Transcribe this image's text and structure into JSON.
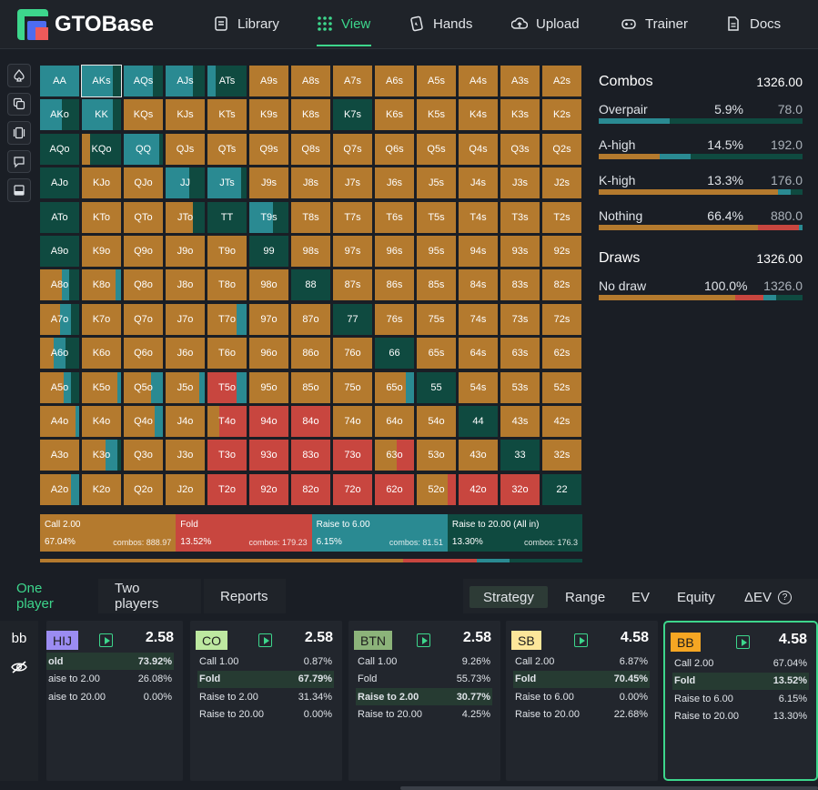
{
  "app": {
    "name": "GTOBase"
  },
  "nav": [
    {
      "label": "Library",
      "icon": "book-icon"
    },
    {
      "label": "View",
      "icon": "grid-icon",
      "active": true
    },
    {
      "label": "Hands",
      "icon": "cards-icon"
    },
    {
      "label": "Upload",
      "icon": "cloud-upload-icon"
    },
    {
      "label": "Trainer",
      "icon": "gamepad-icon"
    },
    {
      "label": "Docs",
      "icon": "document-icon"
    }
  ],
  "colors": {
    "call": "#b47a2e",
    "fold": "#c8463f",
    "raise_small": "#2a8a92",
    "raise_allin": "#0f4a40",
    "accent": "#3dd68c"
  },
  "ranks": [
    "A",
    "K",
    "Q",
    "J",
    "T",
    "9",
    "8",
    "7",
    "6",
    "5",
    "4",
    "3",
    "2"
  ],
  "matrix_overrides": {
    "AA": [
      0,
      0,
      1,
      0
    ],
    "AKs": [
      0,
      0,
      0.8,
      0.2
    ],
    "AQs": [
      0,
      0,
      0.75,
      0.25
    ],
    "AJs": [
      0,
      0,
      0.7,
      0.3
    ],
    "ATs": [
      0,
      0,
      0.2,
      0.8
    ],
    "AKo": [
      0,
      0,
      0.55,
      0.45
    ],
    "KK": [
      0,
      0,
      0.8,
      0.2
    ],
    "K7s": [
      0,
      0,
      0,
      1
    ],
    "AQo": [
      0,
      0,
      0,
      1
    ],
    "KQo": [
      0.2,
      0,
      0,
      0.8
    ],
    "QQ": [
      0,
      0,
      0.9,
      0.1
    ],
    "AJo": [
      0,
      0,
      0,
      1
    ],
    "JJ": [
      0,
      0,
      0.6,
      0.4
    ],
    "JTs": [
      0,
      0,
      0.85,
      0.15
    ],
    "ATo": [
      0,
      0,
      0,
      1
    ],
    "JTo": [
      0.7,
      0,
      0,
      0.3
    ],
    "TT": [
      0,
      0,
      0,
      1
    ],
    "T9s": [
      0,
      0,
      0.6,
      0.4
    ],
    "A9o": [
      0,
      0,
      0,
      1
    ],
    "99": [
      0,
      0,
      0,
      1
    ],
    "A8o": [
      0.55,
      0,
      0.2,
      0.25
    ],
    "K8o": [
      0.85,
      0,
      0.15,
      0
    ],
    "88": [
      0,
      0,
      0,
      1
    ],
    "A7o": [
      0.5,
      0,
      0.3,
      0.2
    ],
    "77": [
      0,
      0,
      0,
      1
    ],
    "T7o": [
      0.75,
      0,
      0.25,
      0
    ],
    "A6o": [
      0.35,
      0,
      0.3,
      0.35
    ],
    "66": [
      0,
      0,
      0,
      1
    ],
    "A5o": [
      0.6,
      0,
      0.2,
      0.2
    ],
    "K5o": [
      0.9,
      0,
      0.1,
      0
    ],
    "Q5o": [
      0.7,
      0,
      0.3,
      0
    ],
    "J5o": [
      0.85,
      0,
      0.15,
      0
    ],
    "T5o": [
      0,
      0.75,
      0.25,
      0
    ],
    "55": [
      0,
      0,
      0,
      1
    ],
    "65o": [
      0.8,
      0,
      0.2,
      0
    ],
    "A4o": [
      0.9,
      0,
      0.1,
      0
    ],
    "Q4o": [
      0.8,
      0,
      0.2,
      0
    ],
    "T4o": [
      0.3,
      0.7,
      0,
      0
    ],
    "94o": [
      0,
      1,
      0,
      0
    ],
    "84o": [
      0,
      1,
      0,
      0
    ],
    "44": [
      0,
      0,
      0,
      1
    ],
    "K3o": [
      0.6,
      0,
      0.3,
      0.1
    ],
    "T3o": [
      0,
      1,
      0,
      0
    ],
    "93o": [
      0,
      1,
      0,
      0
    ],
    "83o": [
      0,
      1,
      0,
      0
    ],
    "73o": [
      0,
      1,
      0,
      0
    ],
    "63o": [
      0.55,
      0.45,
      0,
      0
    ],
    "33": [
      0,
      0,
      0,
      1
    ],
    "A2o": [
      0.8,
      0,
      0.2,
      0
    ],
    "T2o": [
      0,
      1,
      0,
      0
    ],
    "92o": [
      0,
      1,
      0,
      0
    ],
    "82o": [
      0,
      1,
      0,
      0
    ],
    "72o": [
      0,
      1,
      0,
      0
    ],
    "62o": [
      0,
      1,
      0,
      0
    ],
    "52o": [
      0.8,
      0.2,
      0,
      0
    ],
    "42o": [
      0,
      1,
      0,
      0
    ],
    "32o": [
      0,
      1,
      0,
      0
    ],
    "22": [
      0,
      0,
      0,
      1
    ]
  },
  "selected_hand": "AKs",
  "legend": [
    {
      "action": "Call 2.00",
      "pct": "67.04%",
      "combos": "combos: 888.97",
      "share": 0.2505
    },
    {
      "action": "Fold",
      "pct": "13.52%",
      "combos": "combos: 179.23",
      "share": 0.2505
    },
    {
      "action": "Raise to 6.00",
      "pct": "6.15%",
      "combos": "combos: 81.51",
      "share": 0.2505
    },
    {
      "action": "Raise to 20.00 (All in)",
      "pct": "13.30%",
      "combos": "combos: 176.3",
      "share": 0.2485
    }
  ],
  "legend_bar": [
    0.67,
    0.135,
    0.06,
    0.135
  ],
  "combos": {
    "title": "Combos",
    "total": "1326.00",
    "rows": [
      {
        "name": "Overpair",
        "pct": "5.9%",
        "count": "78.0",
        "bar": [
          0,
          0,
          0.35,
          0.65
        ]
      },
      {
        "name": "A-high",
        "pct": "14.5%",
        "count": "192.0",
        "bar": [
          0.3,
          0,
          0.15,
          0.55
        ]
      },
      {
        "name": "K-high",
        "pct": "13.3%",
        "count": "176.0",
        "bar": [
          0.88,
          0,
          0.06,
          0.06
        ]
      },
      {
        "name": "Nothing",
        "pct": "66.4%",
        "count": "880.0",
        "bar": [
          0.78,
          0.2,
          0.02,
          0
        ]
      }
    ]
  },
  "draws": {
    "title": "Draws",
    "total": "1326.00",
    "rows": [
      {
        "name": "No draw",
        "pct": "100.0%",
        "count": "1326.0",
        "bar": [
          0.67,
          0.14,
          0.06,
          0.13
        ]
      }
    ]
  },
  "tabs": [
    "One player",
    "Two players",
    "Reports"
  ],
  "view_tabs": [
    "Strategy",
    "Range",
    "EV",
    "Equity",
    "ΔEV"
  ],
  "side_buttons": [
    "bb",
    "eye-off-icon"
  ],
  "players": [
    {
      "pos": "HIJ",
      "stack": "2.58",
      "badge": "#9b8cf2",
      "actions": [
        [
          "old",
          "73.92%"
        ],
        [
          "aise to 2.00",
          "26.08%"
        ],
        [
          "aise to 20.00",
          "0.00%"
        ]
      ],
      "hi": 0
    },
    {
      "pos": "CO",
      "stack": "2.58",
      "badge": "#bde8a0",
      "actions": [
        [
          "Call 1.00",
          "0.87%"
        ],
        [
          "Fold",
          "67.79%"
        ],
        [
          "Raise to 2.00",
          "31.34%"
        ],
        [
          "Raise to 20.00",
          "0.00%"
        ]
      ],
      "hi": 1
    },
    {
      "pos": "BTN",
      "stack": "2.58",
      "badge": "#8cb37a",
      "actions": [
        [
          "Call 1.00",
          "9.26%"
        ],
        [
          "Fold",
          "55.73%"
        ],
        [
          "Raise to 2.00",
          "30.77%"
        ],
        [
          "Raise to 20.00",
          "4.25%"
        ]
      ],
      "hi": 2
    },
    {
      "pos": "SB",
      "stack": "4.58",
      "badge": "#fce69a",
      "actions": [
        [
          "Call 2.00",
          "6.87%"
        ],
        [
          "Fold",
          "70.45%"
        ],
        [
          "Raise to 6.00",
          "0.00%"
        ],
        [
          "Raise to 20.00",
          "22.68%"
        ]
      ],
      "hi": 1
    },
    {
      "pos": "BB",
      "stack": "4.58",
      "badge": "#f5a623",
      "actions": [
        [
          "Call 2.00",
          "67.04%"
        ],
        [
          "Fold",
          "13.52%"
        ],
        [
          "Raise to 6.00",
          "6.15%"
        ],
        [
          "Raise to 20.00",
          "13.30%"
        ]
      ],
      "hi": 1
    }
  ]
}
